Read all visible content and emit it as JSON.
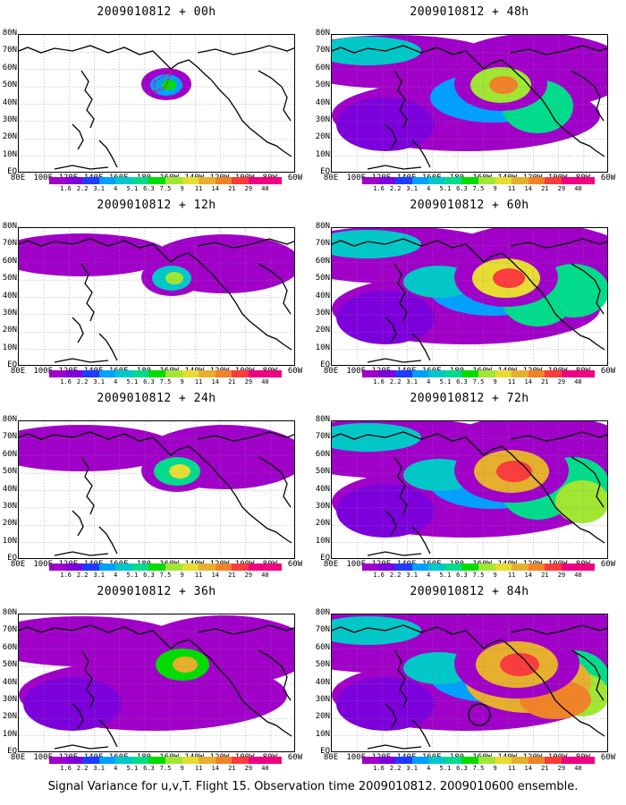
{
  "panels": [
    {
      "title": "2009010812 + 00h",
      "col": 0,
      "row": 0,
      "level": 0
    },
    {
      "title": "2009010812 + 48h",
      "col": 1,
      "row": 0,
      "level": 4
    },
    {
      "title": "2009010812 + 12h",
      "col": 0,
      "row": 1,
      "level": 1
    },
    {
      "title": "2009010812 + 60h",
      "col": 1,
      "row": 1,
      "level": 5
    },
    {
      "title": "2009010812 + 24h",
      "col": 0,
      "row": 2,
      "level": 2
    },
    {
      "title": "2009010812 + 72h",
      "col": 1,
      "row": 2,
      "level": 6
    },
    {
      "title": "2009010812 + 36h",
      "col": 0,
      "row": 3,
      "level": 3
    },
    {
      "title": "2009010812 + 84h",
      "col": 1,
      "row": 3,
      "level": 7
    }
  ],
  "lat_labels": [
    "80N",
    "70N",
    "60N",
    "50N",
    "40N",
    "30N",
    "20N",
    "10N",
    "EQ"
  ],
  "lon_labels": [
    "80E",
    "100E",
    "120E",
    "140E",
    "160E",
    "180",
    "160W",
    "140W",
    "120W",
    "100W",
    "80W",
    "60W"
  ],
  "colorbar_labels": [
    "1.6",
    "2.2",
    "3.1",
    "4",
    "5.1",
    "6.3",
    "7.5",
    "9",
    "11",
    "14",
    "21",
    "29",
    "40"
  ],
  "colorbar_colors": [
    "#a000c8",
    "#7d00dc",
    "#1e3cff",
    "#00a0ff",
    "#00c8c8",
    "#00dc8c",
    "#00dc00",
    "#a0e632",
    "#e6dc32",
    "#e6af2d",
    "#f08228",
    "#fa3c3c",
    "#f00082"
  ],
  "caption": "Signal Variance for u,v,T. Flight 15. Observation time 2009010812. 2009010600 ensemble."
}
